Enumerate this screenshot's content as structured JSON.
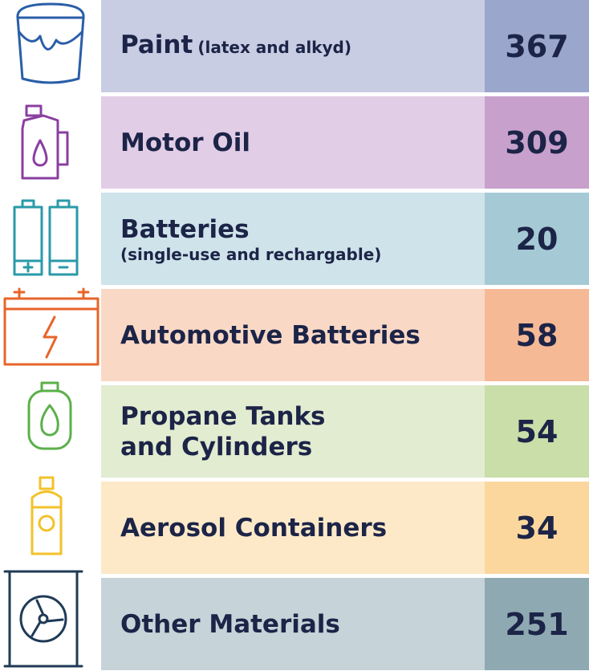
{
  "rows": [
    {
      "label": "Paint",
      "note": "(latex and alkyd)",
      "value": 367
    },
    {
      "label": "Motor Oil",
      "value": 309
    },
    {
      "label": "Batteries",
      "note": "(single-use and rechargable)",
      "value": 20
    },
    {
      "label": "Automotive Batteries",
      "value": 58
    },
    {
      "label": "Propane Tanks and Cylinders",
      "value": 54
    },
    {
      "label": "Aerosol Containers",
      "value": 34
    },
    {
      "label": "Other Materials",
      "value": 251
    }
  ]
}
